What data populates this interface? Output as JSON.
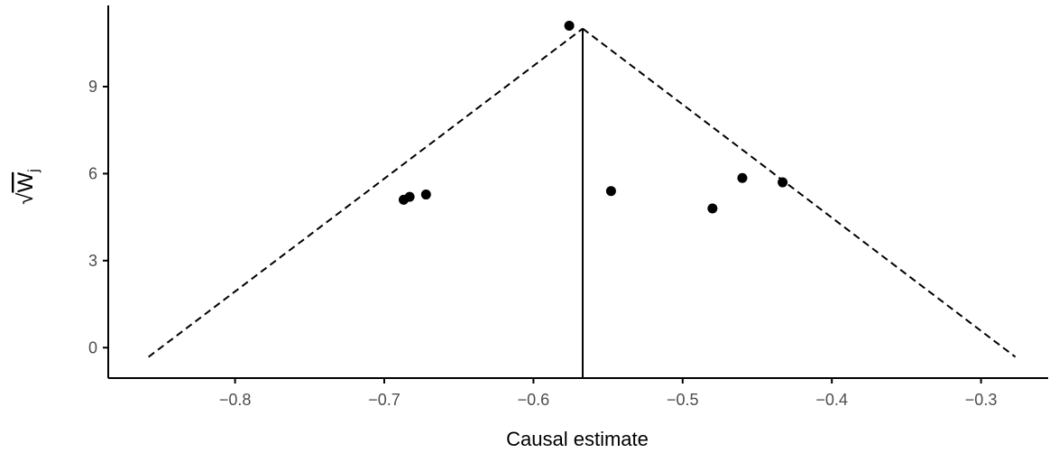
{
  "chart_data": {
    "type": "scatter",
    "xlabel": "Causal estimate",
    "ylabel": {
      "radical": "√",
      "base": "W",
      "subscript": "j"
    },
    "xlim": [
      -0.885,
      -0.255
    ],
    "ylim": [
      -1.05,
      11.8
    ],
    "x_ticks": [
      -0.8,
      -0.7,
      -0.6,
      -0.5,
      -0.4,
      -0.3
    ],
    "x_tick_labels": [
      "−0.8",
      "−0.7",
      "−0.6",
      "−0.5",
      "−0.4",
      "−0.3"
    ],
    "y_ticks": [
      0,
      3,
      6,
      9
    ],
    "y_tick_labels": [
      "0",
      "3",
      "6",
      "9"
    ],
    "points": [
      {
        "x": -0.687,
        "y": 5.1
      },
      {
        "x": -0.683,
        "y": 5.2
      },
      {
        "x": -0.672,
        "y": 5.28
      },
      {
        "x": -0.576,
        "y": 11.1
      },
      {
        "x": -0.548,
        "y": 5.4
      },
      {
        "x": -0.48,
        "y": 4.8
      },
      {
        "x": -0.46,
        "y": 5.85
      },
      {
        "x": -0.433,
        "y": 5.7
      }
    ],
    "vertical_line_x": -0.567,
    "funnel": {
      "apex": {
        "x": -0.567,
        "y": 11.0
      },
      "left_end": {
        "x": -0.858,
        "y": -0.32
      },
      "right_end": {
        "x": -0.277,
        "y": -0.32
      }
    },
    "grid": false,
    "colors": {
      "points": "#000000",
      "lines": "#000000",
      "axes": "#000000",
      "tick_text": "#4d4d4d"
    }
  }
}
